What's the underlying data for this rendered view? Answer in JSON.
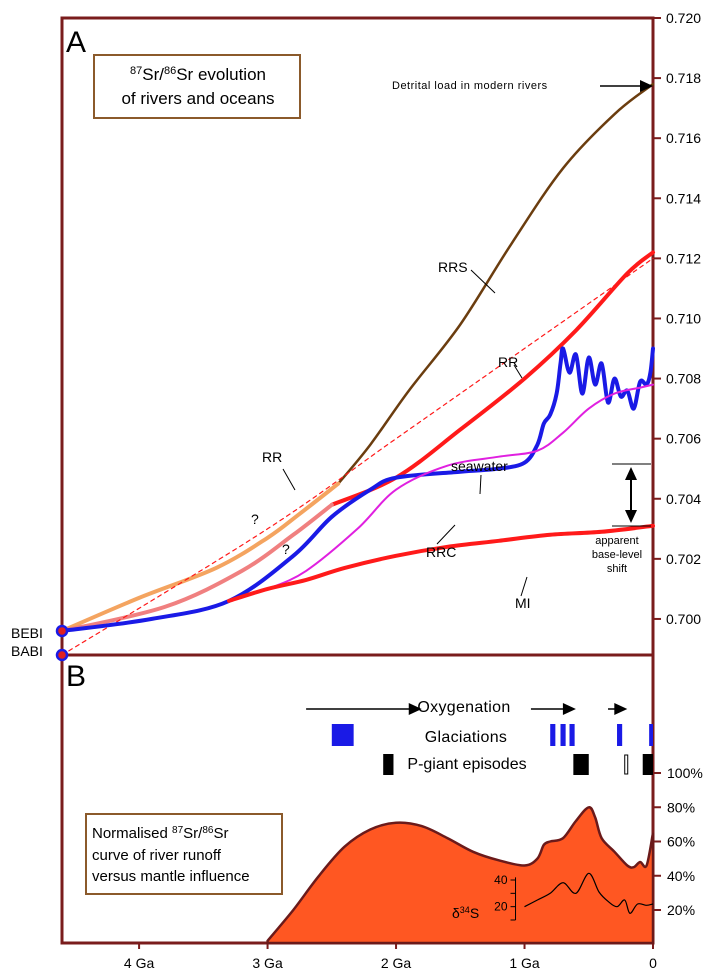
{
  "colors": {
    "frame": "#7a1c1c",
    "rrs": "#6b3d0f",
    "rrs_early": "#f4a460",
    "rr": "#ff1a1a",
    "rr_early": "#f08080",
    "seawater": "#1a1ae6",
    "rrc": "#e020e0",
    "mi": "#ff1a1a",
    "fill_b": "#ff5722",
    "fill_b_stroke": "#6b1a1a",
    "glaciation": "#1a1ae6",
    "pgiant": "#000000",
    "box_border": "#8b5a2b"
  },
  "panel_a": {
    "letter": "A",
    "box_line1_sup1": "87",
    "box_line1_mid": "Sr/",
    "box_line1_sup2": "86",
    "box_line1_end": "Sr evolution",
    "box_line2": "of rivers and oceans",
    "detrital_label": "Detrital load in modern rivers",
    "labels": {
      "rrs": "RRS",
      "rr_upper": "RR",
      "rr_dashed": "RR",
      "seawater": "seawater",
      "rrc": "RRC",
      "mi": "MI",
      "q1": "?",
      "q2": "?",
      "apparent1": "apparent",
      "apparent2": "base-level",
      "apparent3": "shift",
      "bebi": "BEBI",
      "babi": "BABI"
    }
  },
  "panel_b": {
    "letter": "B",
    "oxygenation": "Oxygenation",
    "glaciations": "Glaciations",
    "pgiant": "P-giant  episodes",
    "box_line1_pre": "Normalised ",
    "box_line1_sup1": "87",
    "box_line1_mid": "Sr/",
    "box_line1_sup2": "86",
    "box_line1_end": "Sr",
    "box_line2": "curve of river runoff",
    "box_line3": "versus mantle influence",
    "d34s_delta": "δ",
    "d34s_sup": "34",
    "d34s_s": "S",
    "d34s_ticks": [
      "40",
      "20"
    ]
  },
  "chart_data": [
    {
      "type": "line",
      "panel": "A",
      "xlabel": "",
      "ylabel": "",
      "xlim": [
        4.6,
        0
      ],
      "ylim": [
        0.6988,
        0.72
      ],
      "x_ticks": [
        "4 Ga",
        "3 Ga",
        "2 Ga",
        "1 Ga",
        "0"
      ],
      "x_tick_values": [
        4,
        3,
        2,
        1,
        0
      ],
      "y_ticks": [
        "0.720",
        "0.718",
        "0.716",
        "0.714",
        "0.712",
        "0.710",
        "0.708",
        "0.706",
        "0.704",
        "0.702",
        "0.700"
      ],
      "y_tick_values": [
        0.72,
        0.718,
        0.716,
        0.714,
        0.712,
        0.71,
        0.708,
        0.706,
        0.704,
        0.702,
        0.7
      ],
      "series": [
        {
          "name": "RRS",
          "color_key": "rrs",
          "x": [
            2.45,
            2.2,
            1.9,
            1.5,
            1.1,
            0.7,
            0.3,
            0.0
          ],
          "y": [
            0.7045,
            0.7058,
            0.7076,
            0.7098,
            0.7125,
            0.715,
            0.7168,
            0.7178
          ]
        },
        {
          "name": "",
          "color_key": "rrs_early",
          "x": [
            4.6,
            4.0,
            3.4,
            3.0,
            2.75,
            2.45
          ],
          "y": [
            0.6996,
            0.7007,
            0.7017,
            0.7027,
            0.7035,
            0.7045
          ]
        },
        {
          "name": "RR",
          "color_key": "rr",
          "x": [
            2.5,
            2.0,
            1.5,
            1.0,
            0.6,
            0.2,
            0.0
          ],
          "y": [
            0.7038,
            0.7047,
            0.7063,
            0.708,
            0.7096,
            0.7115,
            0.7122
          ]
        },
        {
          "name": "",
          "color_key": "rr_early",
          "x": [
            4.6,
            3.8,
            3.2,
            2.8,
            2.5
          ],
          "y": [
            0.6996,
            0.7004,
            0.7016,
            0.7028,
            0.7038
          ]
        },
        {
          "name": "RR",
          "color_key": "rr",
          "dashed": true,
          "x": [
            4.6,
            3.0,
            2.0,
            1.0,
            0.0
          ],
          "y": [
            0.6988,
            0.703,
            0.706,
            0.709,
            0.712
          ]
        },
        {
          "name": "seawater",
          "color_key": "seawater",
          "x": [
            4.6,
            3.9,
            3.3,
            2.8,
            2.5,
            2.2,
            2.0,
            1.5,
            1.2,
            1.0,
            0.9,
            0.85,
            0.8,
            0.75,
            0.72,
            0.7,
            0.65,
            0.6,
            0.55,
            0.5,
            0.45,
            0.4,
            0.35,
            0.3,
            0.25,
            0.2,
            0.15,
            0.1,
            0.05,
            0.02,
            0.0
          ],
          "y": [
            0.6996,
            0.7,
            0.7006,
            0.7021,
            0.7034,
            0.7043,
            0.7047,
            0.7049,
            0.705,
            0.7052,
            0.7058,
            0.7065,
            0.7068,
            0.7075,
            0.7085,
            0.709,
            0.7082,
            0.7088,
            0.7075,
            0.7087,
            0.7078,
            0.7085,
            0.7072,
            0.708,
            0.7074,
            0.7076,
            0.707,
            0.7079,
            0.7078,
            0.7082,
            0.709
          ]
        },
        {
          "name": "RRC",
          "color_key": "rrc",
          "x": [
            3.3,
            3.0,
            2.7,
            2.3,
            2.0,
            1.6,
            1.2,
            0.9,
            0.7,
            0.5,
            0.3,
            0.1,
            0.0
          ],
          "y": [
            0.7006,
            0.701,
            0.7016,
            0.703,
            0.7043,
            0.7051,
            0.7054,
            0.7056,
            0.7062,
            0.707,
            0.7075,
            0.7077,
            0.7078
          ]
        },
        {
          "name": "MI",
          "color_key": "mi",
          "x": [
            3.3,
            3.0,
            2.7,
            2.4,
            2.0,
            1.6,
            1.2,
            0.8,
            0.4,
            0.0
          ],
          "y": [
            0.7006,
            0.701,
            0.7013,
            0.7017,
            0.7021,
            0.7024,
            0.7026,
            0.7028,
            0.7029,
            0.7031
          ]
        }
      ],
      "markers": [
        {
          "label": "BEBI",
          "x": 4.6,
          "y": 0.6996
        },
        {
          "label": "BABI",
          "x": 4.6,
          "y": 0.6988
        }
      ],
      "grid": false
    },
    {
      "type": "area",
      "panel": "B",
      "xlim": [
        4.6,
        0
      ],
      "ylim": [
        0,
        100
      ],
      "y_ticks": [
        "100%",
        "80%",
        "60%",
        "40%",
        "20%"
      ],
      "y_tick_values": [
        100,
        80,
        60,
        40,
        20
      ],
      "x": [
        3.0,
        2.8,
        2.6,
        2.4,
        2.2,
        2.0,
        1.8,
        1.6,
        1.4,
        1.2,
        1.0,
        0.9,
        0.85,
        0.8,
        0.7,
        0.6,
        0.5,
        0.45,
        0.4,
        0.3,
        0.2,
        0.15,
        0.1,
        0.05,
        0.0
      ],
      "y": [
        2,
        20,
        40,
        57,
        67,
        71,
        69,
        62,
        54,
        49,
        46,
        50,
        58,
        60,
        62,
        72,
        80,
        74,
        62,
        54,
        46,
        45,
        48,
        46,
        65
      ],
      "events": {
        "oxygenation_arrows": [
          [
            2.7,
            1.8
          ],
          [
            0.95,
            0.6
          ],
          [
            0.35,
            0.2
          ]
        ],
        "glaciations": [
          [
            2.5,
            2.33
          ],
          [
            0.8,
            0.76
          ],
          [
            0.72,
            0.68
          ],
          [
            0.65,
            0.61
          ],
          [
            0.28,
            0.24
          ],
          [
            0.03,
            0.0
          ]
        ],
        "pgiant_filled": [
          [
            2.1,
            2.02
          ],
          [
            0.62,
            0.5
          ],
          [
            0.08,
            0.0
          ]
        ],
        "pgiant_open": [
          [
            0.22,
            0.2
          ]
        ]
      },
      "d34s": {
        "y_range": [
          10,
          40
        ],
        "x": [
          1.0,
          0.9,
          0.8,
          0.7,
          0.6,
          0.5,
          0.42,
          0.35,
          0.28,
          0.22,
          0.18,
          0.12,
          0.05,
          0.0
        ],
        "y": [
          20,
          25,
          30,
          38,
          30,
          45,
          31,
          24,
          20,
          25,
          15,
          22,
          21,
          22
        ]
      }
    }
  ]
}
